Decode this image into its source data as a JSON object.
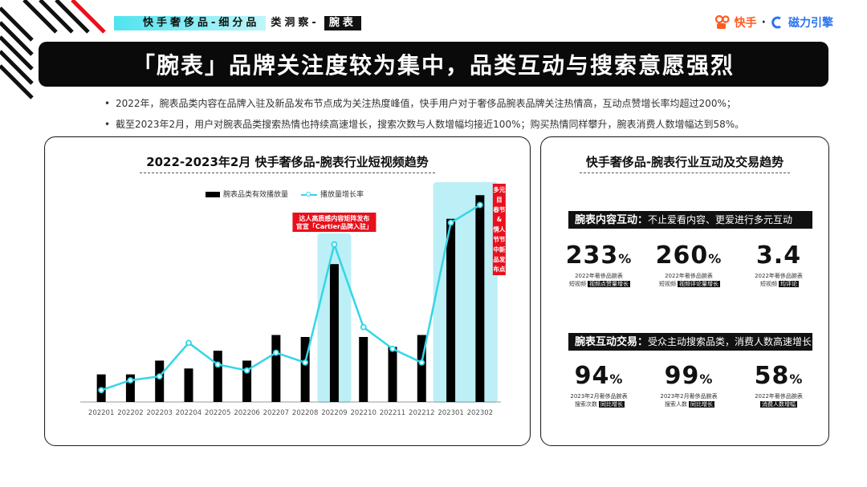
{
  "header": {
    "section_main": "快手奢侈品-细分品",
    "section_mid": "类洞察-",
    "section_highlight": "腕表",
    "logo_kuaishou": "快手",
    "logo_dot": "·",
    "logo_cili": "磁力引擎"
  },
  "title": "「腕表」品牌关注度较为集中，品类互动与搜索意愿强烈",
  "bullets": [
    "2022年，腕表品类内容在品牌入驻及新品发布节点成为关注热度峰值，快手用户对于奢侈品腕表品牌关注热情高，互动点赞增长率均超过200%；",
    "截至2023年2月，用户对腕表品类搜索热情也持续高速增长，搜索次数与人数增幅均接近100%；购买热情同样攀升，腕表消费人数增幅达到58%。"
  ],
  "chart_title": "2022-2023年2月 快手奢侈品-腕表行业短视频趋势",
  "chart_data": {
    "type": "bar",
    "categories": [
      "202201",
      "202202",
      "202203",
      "202204",
      "202205",
      "202206",
      "202207",
      "202208",
      "202209",
      "202210",
      "202211",
      "202212",
      "202301",
      "202302"
    ],
    "series": [
      {
        "name": "腕表品类有效播放量",
        "type": "bar",
        "values": [
          14,
          14,
          21,
          17,
          26,
          21,
          34,
          33,
          70,
          33,
          28,
          34,
          93,
          105
        ]
      },
      {
        "name": "播放量增长率",
        "type": "line",
        "values": [
          6,
          11,
          13,
          30,
          19,
          16,
          25,
          20,
          80,
          38,
          27,
          20,
          91,
          100
        ]
      }
    ],
    "annotations": [
      {
        "category": "202209",
        "text_lines": [
          "达人高质感内容矩阵发布",
          "官宣「Cartier品牌入驻」"
        ]
      },
      {
        "category": "202302",
        "text_lines": [
          "多元",
          "目",
          "春节",
          "&",
          "情人",
          "节节",
          "中新",
          "品发",
          "布点"
        ]
      }
    ],
    "legend_position": "top",
    "grid": false
  },
  "colors": {
    "bar": "#000000",
    "line": "#33d6e6",
    "highlight": "#bdeff6",
    "annotation": "#e8101c",
    "accent_cyan": "#4fe3ef",
    "kuaishou_orange": "#ff5a1f",
    "cili_blue": "#2a74f0"
  },
  "right_panel": {
    "title": "快手奢侈品-腕表行业互动及交易趋势",
    "section1": {
      "bold": "腕表内容互动：",
      "rest": "不止爱看内容、更爱进行多元互动"
    },
    "section2": {
      "bold": "腕表互动交易：",
      "rest": "受众主动搜索品类，消费人数高速增长"
    },
    "stats1": [
      {
        "value": "233",
        "unit": "%",
        "cap1": "2022年奢侈品腕表",
        "cap2a": "短视频",
        "cap2b": "视频点赞量增长"
      },
      {
        "value": "260",
        "unit": "%",
        "cap1": "2022年奢侈品腕表",
        "cap2a": "短视频",
        "cap2b": "视频评论量增长"
      },
      {
        "value": "3.4",
        "unit": "",
        "cap1": "2022年奢侈品腕表",
        "cap2a": "短视频",
        "cap2b": "均评论"
      }
    ],
    "stats2": [
      {
        "value": "94",
        "unit": "%",
        "cap1": "2023年2月奢侈品腕表",
        "cap2a": "搜索次数",
        "cap2b": "同比增长"
      },
      {
        "value": "99",
        "unit": "%",
        "cap1": "2023年2月奢侈品腕表",
        "cap2a": "搜索人数",
        "cap2b": "同比增长"
      },
      {
        "value": "58",
        "unit": "%",
        "cap1": "2022年奢侈品腕表",
        "cap2a": "",
        "cap2b": "消费人数增幅"
      }
    ]
  }
}
